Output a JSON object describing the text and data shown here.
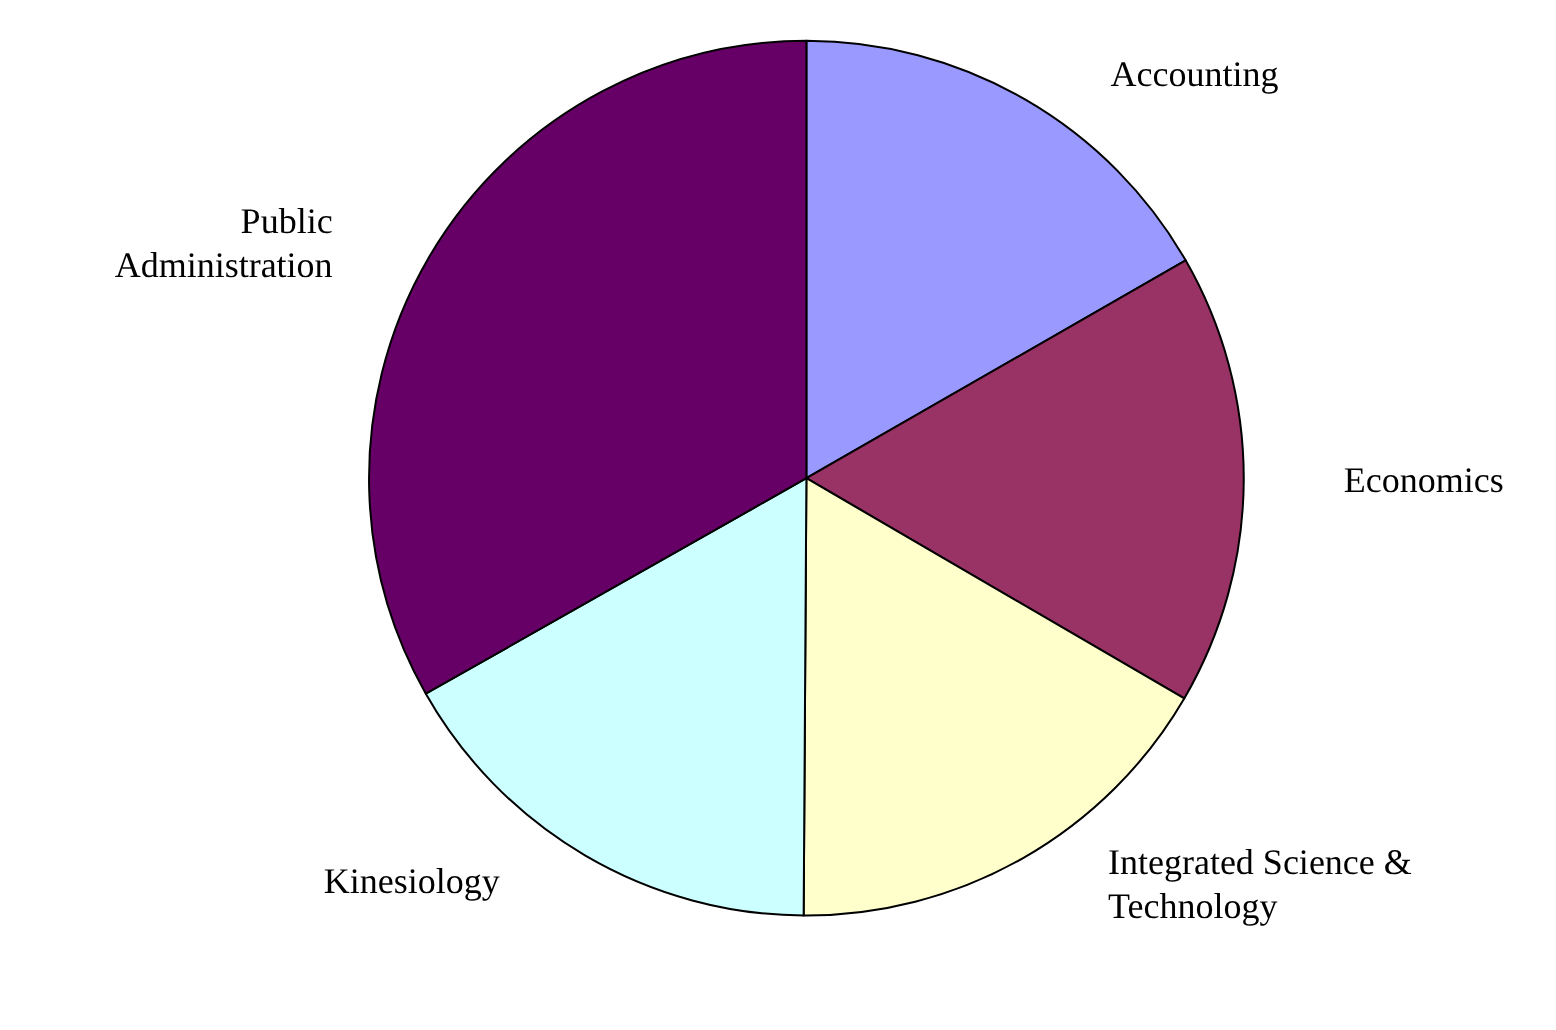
{
  "chart_data": {
    "type": "pie",
    "categories": [
      "Accounting",
      "Economics",
      "Integrated Science &\nTechnology",
      "Kinesiology",
      "Public\nAdministration"
    ],
    "values": [
      16.7,
      16.7,
      16.7,
      16.7,
      33.2
    ],
    "colors": [
      "#9999ff",
      "#993366",
      "#ffffcc",
      "#ccffff",
      "#660066"
    ],
    "legend": false
  }
}
